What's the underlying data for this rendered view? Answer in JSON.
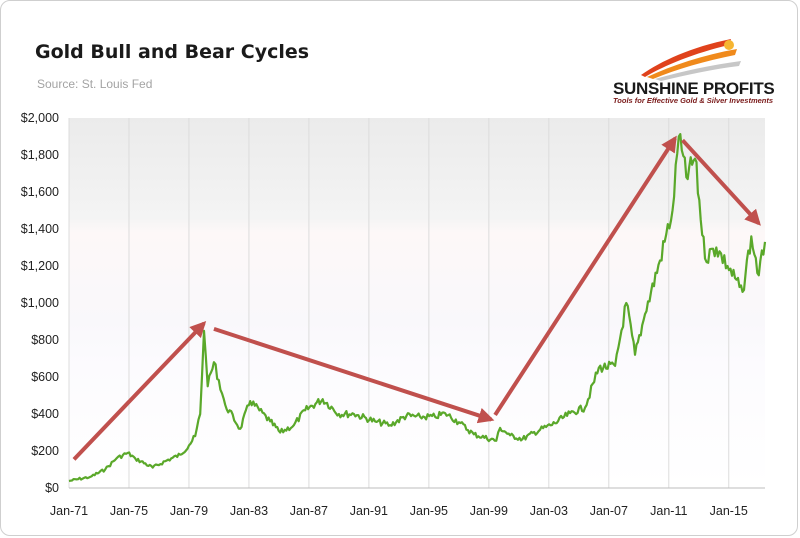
{
  "chart_data": {
    "type": "line",
    "title": "Gold Bull and Bear Cycles",
    "subtitle": "Source: St. Louis Fed",
    "xlabel": "",
    "ylabel": "",
    "x_tick_labels": [
      "Jan-71",
      "Jan-75",
      "Jan-79",
      "Jan-83",
      "Jan-87",
      "Jan-91",
      "Jan-95",
      "Jan-99",
      "Jan-03",
      "Jan-07",
      "Jan-11",
      "Jan-15"
    ],
    "y_tick_labels": [
      "$0",
      "$200",
      "$400",
      "$600",
      "$800",
      "$1,000",
      "$1,200",
      "$1,400",
      "$1,600",
      "$1,800",
      "$2,000"
    ],
    "x_range": [
      "1971-01",
      "2017-06"
    ],
    "ylim": [
      0,
      2000
    ],
    "grid": "vertical",
    "legend": "none",
    "series": [
      {
        "color": "#5aa82a",
        "x": [
          "1971-01",
          "1972-06",
          "1973-06",
          "1974-03",
          "1974-12",
          "1975-06",
          "1976-08",
          "1977-06",
          "1978-06",
          "1979-01",
          "1979-06",
          "1979-10",
          "1980-01",
          "1980-04",
          "1980-09",
          "1981-06",
          "1982-06",
          "1983-02",
          "1984-06",
          "1985-02",
          "1986-01",
          "1986-10",
          "1987-12",
          "1989-01",
          "1990-01",
          "1991-06",
          "1992-06",
          "1993-07",
          "1994-06",
          "1995-06",
          "1996-02",
          "1997-01",
          "1998-01",
          "1999-07",
          "1999-10",
          "2000-06",
          "2001-04",
          "2002-06",
          "2003-06",
          "2004-06",
          "2005-06",
          "2006-05",
          "2007-06",
          "2008-03",
          "2008-10",
          "2009-06",
          "2010-06",
          "2011-04",
          "2011-09",
          "2012-03",
          "2012-10",
          "2013-06",
          "2014-03",
          "2014-12",
          "2015-12",
          "2016-07",
          "2017-01",
          "2017-06"
        ],
        "values": [
          38,
          60,
          100,
          160,
          190,
          160,
          110,
          145,
          180,
          230,
          280,
          400,
          850,
          550,
          680,
          450,
          320,
          470,
          360,
          300,
          340,
          420,
          480,
          400,
          400,
          360,
          340,
          390,
          385,
          385,
          405,
          355,
          290,
          255,
          325,
          285,
          265,
          315,
          350,
          405,
          435,
          650,
          660,
          1000,
          720,
          940,
          1230,
          1500,
          1900,
          1680,
          1780,
          1240,
          1300,
          1200,
          1060,
          1360,
          1150,
          1330
        ]
      }
    ],
    "annotations": [
      {
        "type": "arrow",
        "from": [
          "1971-05",
          155
        ],
        "to": [
          "1980-01",
          890
        ]
      },
      {
        "type": "arrow",
        "from": [
          "1980-09",
          860
        ],
        "to": [
          "1999-03",
          370
        ]
      },
      {
        "type": "arrow",
        "from": [
          "1999-06",
          395
        ],
        "to": [
          "2011-06",
          1890
        ]
      },
      {
        "type": "arrow",
        "from": [
          "2011-12",
          1880
        ],
        "to": [
          "2017-01",
          1430
        ]
      }
    ]
  },
  "logo": {
    "name": "SUNSHINE PROFITS",
    "tagline": "Tools for Effective Gold & Silver Investments"
  }
}
